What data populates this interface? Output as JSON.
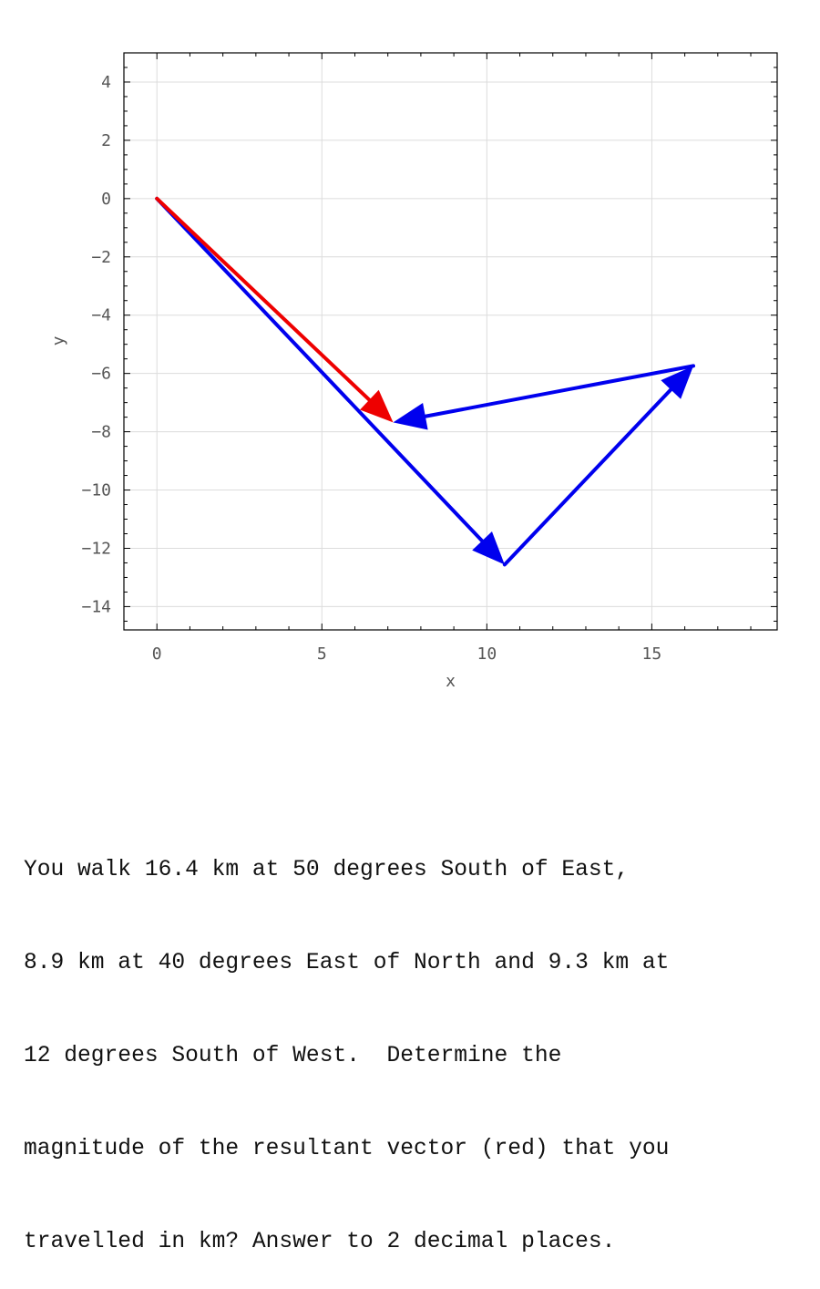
{
  "chart_data": {
    "type": "vector-plot",
    "xlabel": "x",
    "ylabel": "y",
    "xlim": [
      -1,
      18.8
    ],
    "ylim": [
      -14.8,
      5
    ],
    "x_ticks": [
      0,
      5,
      10,
      15
    ],
    "y_ticks": [
      4,
      2,
      0,
      -2,
      -4,
      -6,
      -8,
      -10,
      -12,
      -14
    ],
    "grid": true,
    "vectors": [
      {
        "role": "component",
        "color": "#0000ee",
        "from": [
          0,
          0
        ],
        "to": [
          10.54,
          -12.56
        ]
      },
      {
        "role": "component",
        "color": "#0000ee",
        "from": [
          10.54,
          -12.56
        ],
        "to": [
          16.26,
          -5.74
        ]
      },
      {
        "role": "component",
        "color": "#0000ee",
        "from": [
          16.26,
          -5.74
        ],
        "to": [
          7.16,
          -7.68
        ]
      },
      {
        "role": "resultant",
        "color": "#ee0000",
        "from": [
          0,
          0
        ],
        "to": [
          7.16,
          -7.68
        ]
      }
    ]
  },
  "question": {
    "lines": [
      "You walk 16.4 km at 50 degrees South of East,",
      "8.9 km at 40 degrees East of North and 9.3 km at",
      "12 degrees South of West.  Determine the",
      "magnitude of the resultant vector (red) that you",
      "travelled in km? Answer to 2 decimal places."
    ]
  }
}
